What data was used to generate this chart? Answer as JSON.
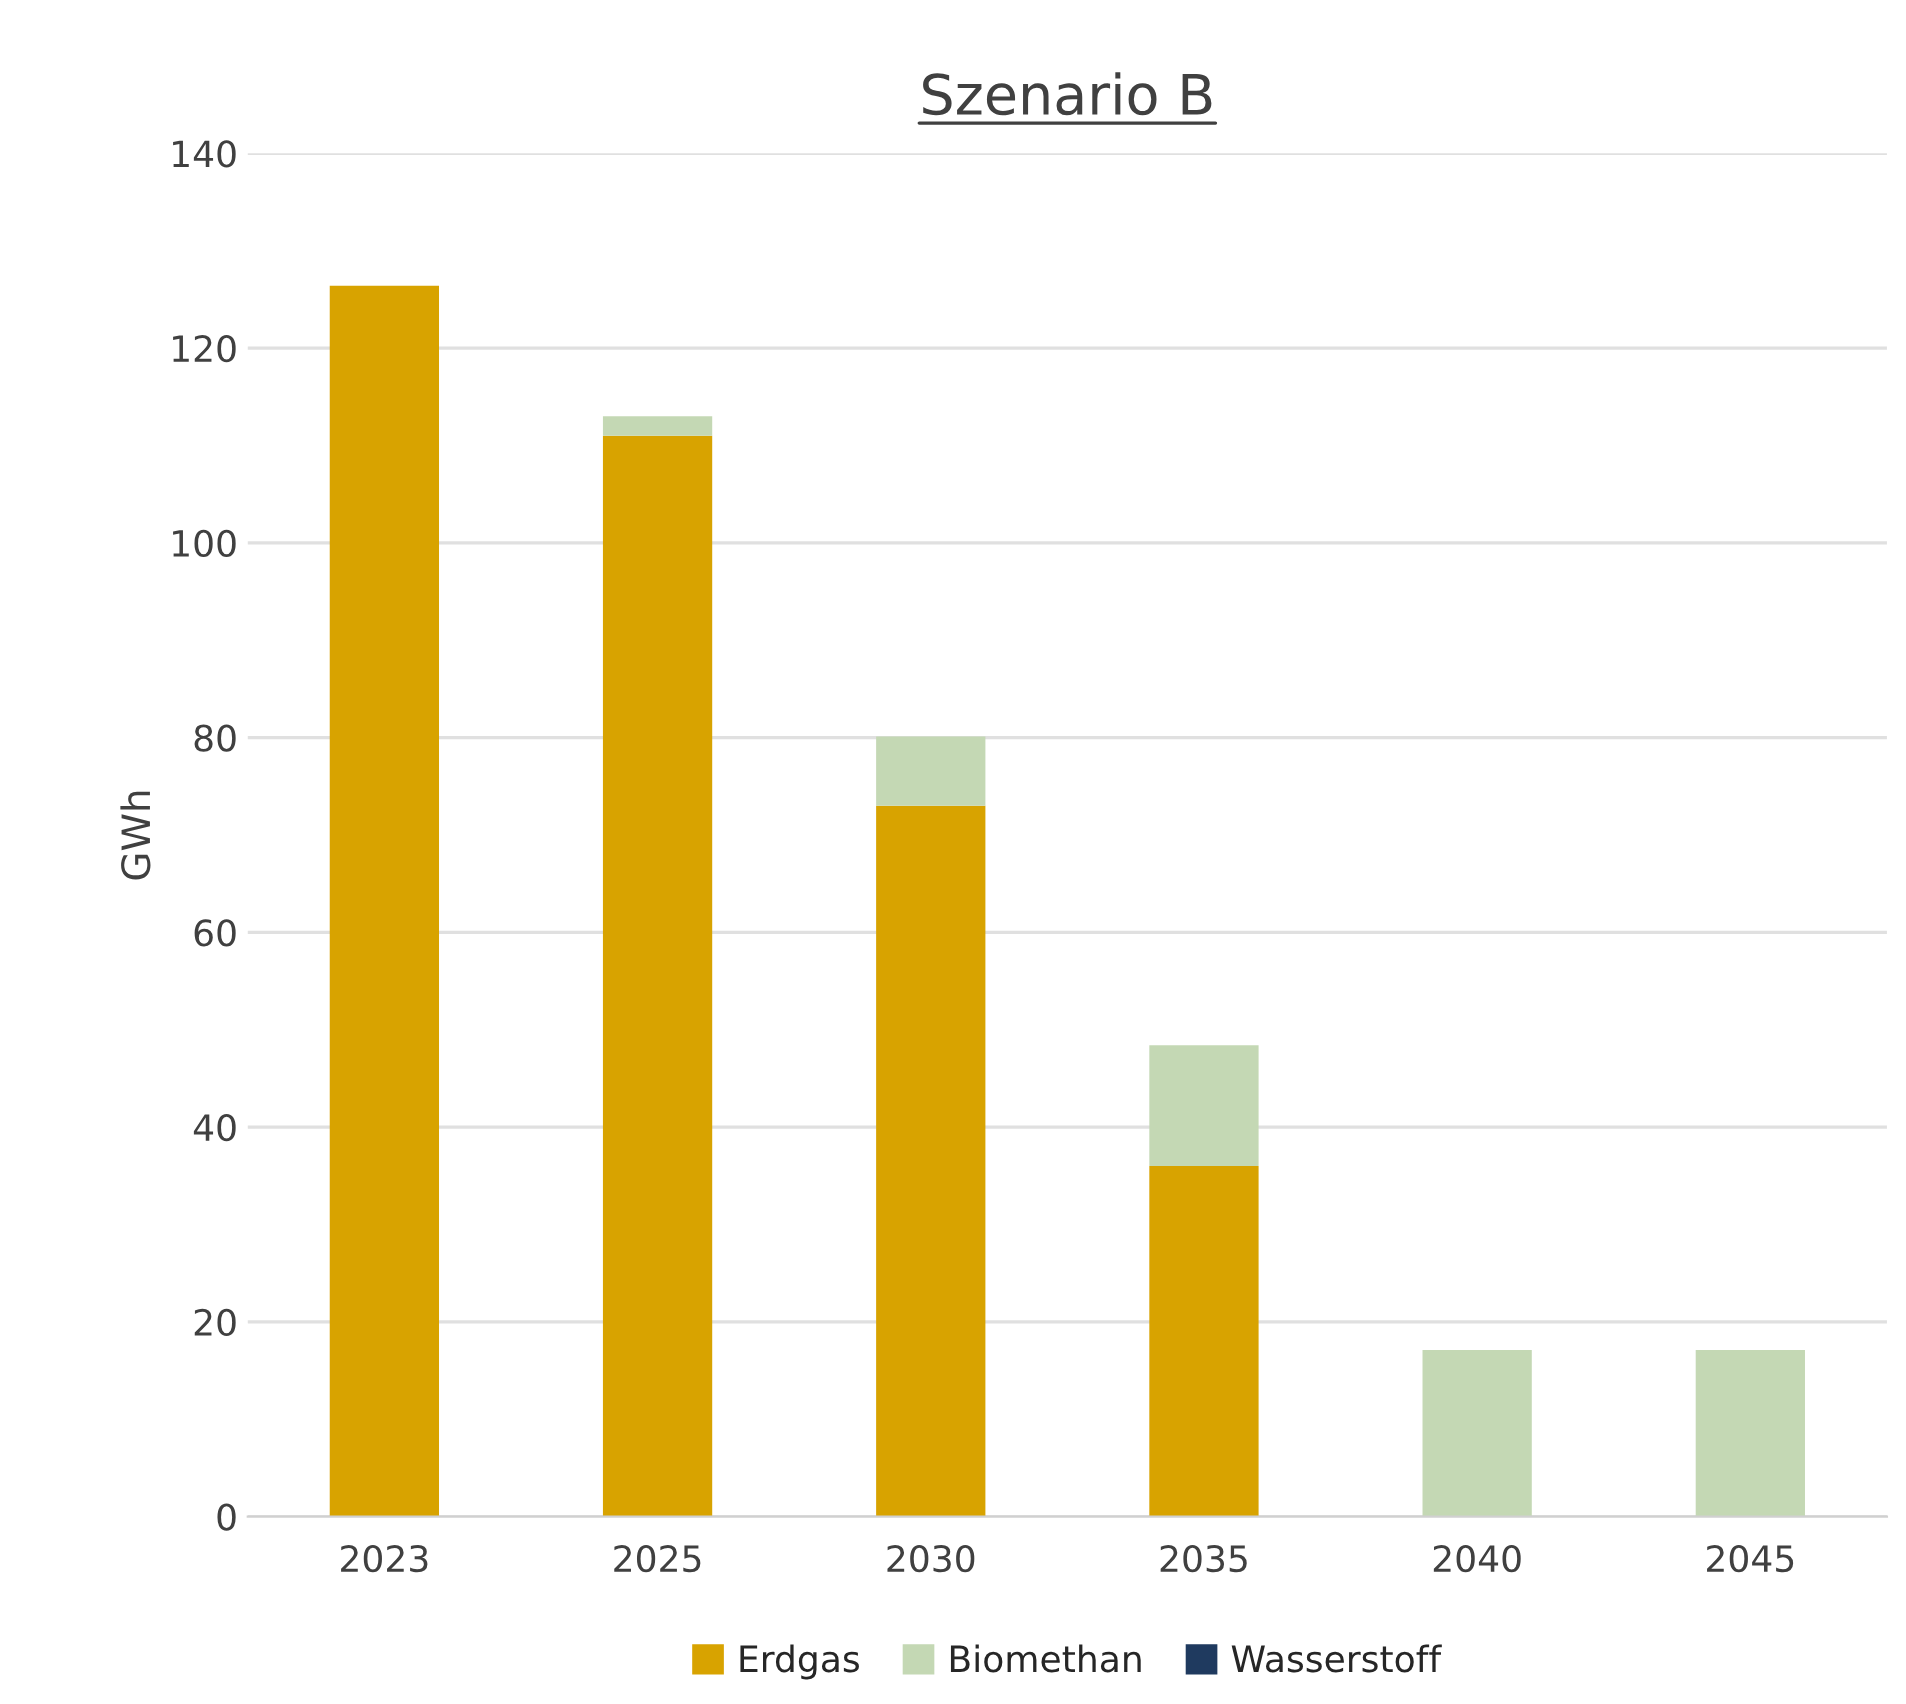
{
  "chart_data": {
    "type": "bar",
    "title": "Szenario B",
    "ylabel": "GWh",
    "categories": [
      "2023",
      "2025",
      "2030",
      "2035",
      "2040",
      "2045"
    ],
    "series": [
      {
        "name": "Erdgas",
        "color": "#d8a300",
        "values": [
          126.4,
          111,
          73,
          36,
          null,
          null
        ]
      },
      {
        "name": "Biomethan",
        "color": "#c4d8b4",
        "values": [
          0,
          2,
          7.1,
          12.4,
          17.1,
          17.1
        ]
      },
      {
        "name": "Wasserstoff",
        "color": "#1f3a5f",
        "values": [
          null,
          null,
          null,
          null,
          null,
          null
        ]
      }
    ],
    "stacked": true,
    "ylim": [
      0,
      140
    ],
    "yticks": [
      0,
      20,
      40,
      60,
      80,
      100,
      120,
      140
    ],
    "grid": "y",
    "legend": "bottom"
  }
}
